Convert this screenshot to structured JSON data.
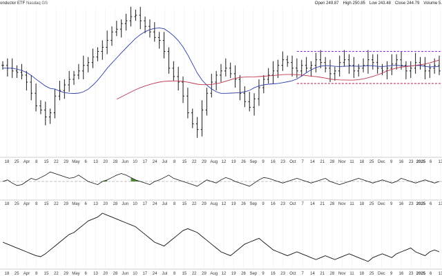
{
  "header": {
    "title": "onductor ETF",
    "exchange": "Nasdaq GS",
    "open_label": "Open",
    "open": "249.87",
    "high_label": "High",
    "high": "250.85",
    "low_label": "Low",
    "low": "243.48",
    "close_label": "Close",
    "close": "244.79",
    "volume_label": "Volume",
    "volume": "5."
  },
  "colors": {
    "price": "#000000",
    "ma_short": "#2b3aa6",
    "ma_long": "#c0334d",
    "resistance": "#8a2be2",
    "support": "#b0174b",
    "panel_border": "#999999",
    "fill_green": "#4f8a3a"
  },
  "chart_data": [
    {
      "type": "ohlc",
      "x_tick_labels": [
        "18",
        "25",
        "Apr",
        "8",
        "15",
        "22",
        "29",
        "May",
        "6",
        "13",
        "20",
        "28",
        "Jun",
        "10",
        "17",
        "24",
        "Jul",
        "8",
        "15",
        "22",
        "29",
        "Aug",
        "12",
        "19",
        "26",
        "Sep",
        "9",
        "16",
        "23",
        "Oct",
        "7",
        "14",
        "21",
        "28",
        "Nov",
        "11",
        "18",
        "25",
        "Dec",
        "9",
        "16",
        "23",
        "2025",
        "6",
        "13"
      ],
      "ylim": [
        0,
        100
      ],
      "close": [
        62,
        60,
        58,
        57,
        55,
        50,
        42,
        33,
        30,
        25,
        28,
        40,
        44,
        48,
        52,
        55,
        58,
        62,
        64,
        68,
        72,
        75,
        80,
        86,
        88,
        92,
        94,
        97,
        98,
        94,
        90,
        86,
        82,
        80,
        72,
        60,
        54,
        50,
        40,
        28,
        20,
        16,
        30,
        42,
        50,
        55,
        58,
        60,
        56,
        52,
        42,
        36,
        32,
        38,
        46,
        52,
        55,
        58,
        62,
        66,
        64,
        60,
        58,
        62,
        60,
        62,
        66,
        64,
        60,
        56,
        58,
        64,
        66,
        62,
        58,
        60,
        62,
        66,
        64,
        60,
        58,
        60,
        63,
        66,
        62,
        58,
        60,
        64,
        62,
        58,
        60,
        62,
        58
      ],
      "annotation_lines": [
        {
          "type": "resistance",
          "y": 72
        },
        {
          "type": "support",
          "y": 49
        }
      ]
    },
    {
      "type": "line",
      "name_hidden": true,
      "values": [
        50,
        52,
        48,
        45,
        46,
        50,
        54,
        52,
        55,
        58,
        62,
        60,
        58,
        56,
        54,
        55,
        58,
        54,
        50,
        48,
        46,
        50,
        52,
        55,
        58,
        60,
        58,
        55,
        52,
        50,
        48,
        46,
        50,
        52,
        55,
        58,
        54,
        52,
        50,
        48,
        46,
        44,
        48,
        52,
        50,
        48,
        52,
        55,
        53,
        50,
        48,
        46,
        44,
        48,
        52,
        55,
        54,
        52,
        50,
        48,
        50,
        52,
        54,
        52,
        50,
        48,
        50,
        52,
        54,
        50,
        48,
        46,
        48,
        50,
        52,
        54,
        52,
        50,
        48,
        50,
        52,
        50,
        48,
        50,
        54,
        52,
        50,
        48,
        50,
        52,
        50,
        48,
        50
      ],
      "fill_segments": [
        [
          20,
          22
        ],
        [
          27,
          29
        ]
      ],
      "reference": 50
    },
    {
      "type": "line",
      "name_hidden": true,
      "values": [
        40,
        38,
        36,
        34,
        32,
        30,
        28,
        26,
        25,
        28,
        32,
        36,
        40,
        44,
        48,
        50,
        54,
        58,
        62,
        64,
        66,
        70,
        68,
        66,
        64,
        62,
        60,
        58,
        56,
        52,
        48,
        44,
        40,
        38,
        36,
        40,
        44,
        48,
        52,
        54,
        52,
        50,
        46,
        42,
        38,
        34,
        30,
        28,
        26,
        30,
        34,
        38,
        40,
        42,
        44,
        40,
        36,
        32,
        30,
        28,
        26,
        28,
        30,
        28,
        26,
        24,
        22,
        24,
        26,
        24,
        22,
        24,
        26,
        28,
        26,
        24,
        22,
        20,
        24,
        26,
        28,
        26,
        24,
        28,
        30,
        32,
        34,
        30,
        28,
        26,
        30,
        32,
        30
      ]
    }
  ]
}
